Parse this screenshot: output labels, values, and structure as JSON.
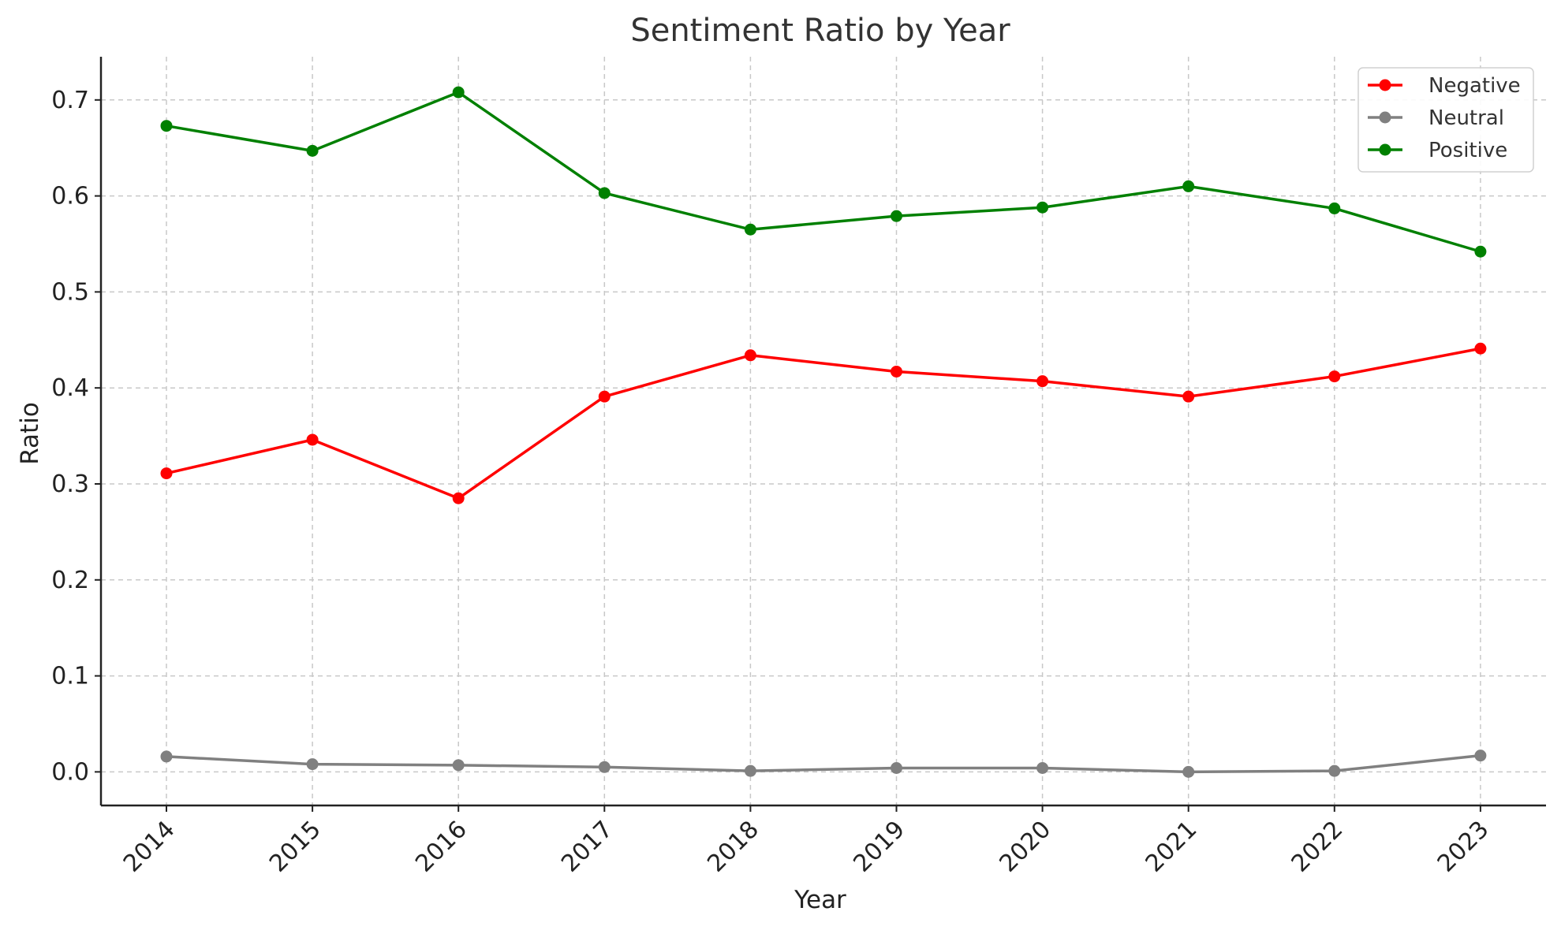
{
  "chart_data": {
    "type": "line",
    "title": "Sentiment Ratio by Year",
    "xlabel": "Year",
    "ylabel": "Ratio",
    "x": [
      "2014",
      "2015",
      "2016",
      "2017",
      "2018",
      "2019",
      "2020",
      "2021",
      "2022",
      "2023"
    ],
    "ylim": [
      -0.035,
      0.745
    ],
    "yticks": [
      "0.0",
      "0.1",
      "0.2",
      "0.3",
      "0.4",
      "0.5",
      "0.6",
      "0.7"
    ],
    "grid": true,
    "legend_position": "top-right",
    "series": [
      {
        "name": "Negative",
        "color": "#ff0000",
        "marker": "circle",
        "values": [
          0.311,
          0.346,
          0.285,
          0.391,
          0.434,
          0.417,
          0.407,
          0.391,
          0.412,
          0.441
        ]
      },
      {
        "name": "Neutral",
        "color": "#808080",
        "marker": "circle",
        "values": [
          0.016,
          0.008,
          0.007,
          0.005,
          0.001,
          0.004,
          0.004,
          0.0,
          0.001,
          0.017
        ]
      },
      {
        "name": "Positive",
        "color": "#008000",
        "marker": "circle",
        "values": [
          0.673,
          0.647,
          0.708,
          0.603,
          0.565,
          0.579,
          0.588,
          0.61,
          0.587,
          0.542
        ]
      }
    ]
  }
}
